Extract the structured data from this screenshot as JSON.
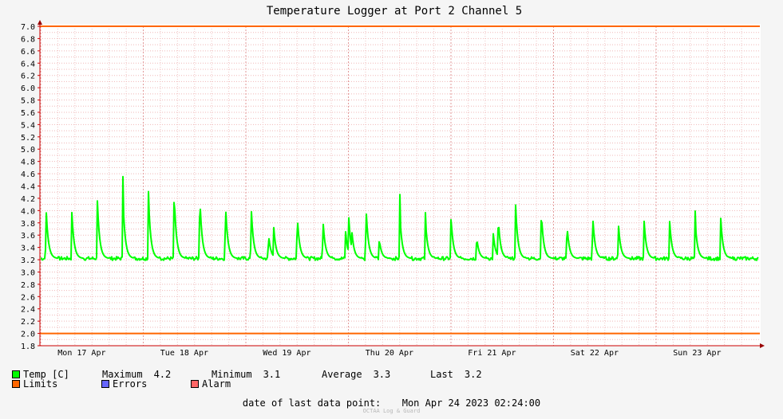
{
  "chart_data": {
    "type": "line",
    "title": "Temperature Logger at Port 2 Channel 5",
    "ylim": [
      1.8,
      7.0
    ],
    "y_ticks": [
      "1.8",
      "2.0",
      "2.2",
      "2.4",
      "2.6",
      "2.8",
      "3.0",
      "3.2",
      "3.4",
      "3.6",
      "3.8",
      "4.0",
      "4.2",
      "4.4",
      "4.6",
      "4.8",
      "5.0",
      "5.2",
      "5.4",
      "5.6",
      "5.8",
      "6.0",
      "6.2",
      "6.4",
      "6.6",
      "6.8",
      "7.0"
    ],
    "x_labels": [
      "Mon 17 Apr",
      "Tue 18 Apr",
      "Wed 19 Apr",
      "Thu 20 Apr",
      "Fri 21 Apr",
      "Sat 22 Apr",
      "Sun 23 Apr"
    ],
    "grid": true,
    "baseline": 3.22,
    "peak_times_days": [
      0.05,
      0.3,
      0.55,
      0.8,
      1.05,
      1.3,
      1.55,
      1.8,
      2.05,
      2.22,
      2.27,
      2.5,
      2.75,
      2.97,
      3.0,
      3.03,
      3.17,
      3.3,
      3.5,
      3.75,
      4.0,
      4.25,
      4.41,
      4.46,
      4.63,
      4.88,
      5.13,
      5.38,
      5.63,
      5.88,
      6.13,
      6.38,
      6.63
    ],
    "peak_values": [
      4.05,
      4.02,
      4.18,
      4.18,
      4.17,
      4.23,
      4.2,
      4.1,
      4.07,
      3.6,
      3.73,
      3.9,
      3.85,
      3.67,
      3.94,
      3.7,
      4.05,
      3.52,
      3.92,
      3.82,
      3.85,
      3.55,
      3.63,
      3.85,
      4.02,
      3.95,
      3.75,
      3.92,
      3.8,
      3.86,
      3.83,
      3.8,
      3.82
    ],
    "series": [
      {
        "name": "Limits",
        "values": [
          2.0,
          7.0
        ],
        "color": "#ff6600"
      },
      {
        "name": "Temp [C]",
        "color": "#00ff00"
      }
    ]
  },
  "legend": {
    "temp_label": "Temp [C]",
    "max_label": "Maximum",
    "max_value": "4.2",
    "min_label": "Minimum",
    "min_value": "3.1",
    "avg_label": "Average",
    "avg_value": "3.3",
    "last_label": "Last",
    "last_value": "3.2",
    "limits_label": "Limits",
    "errors_label": "Errors",
    "alarm_label": "Alarm",
    "temp_color": "#00ff00",
    "limits_color": "#ff6600",
    "errors_color": "#6666ff",
    "alarm_color": "#ff6666"
  },
  "footer": {
    "last_point_label": "date of last data point:",
    "last_point_value": "Mon Apr 24 2023 02:24:00",
    "credit": "OCTAA Log & Guard"
  }
}
